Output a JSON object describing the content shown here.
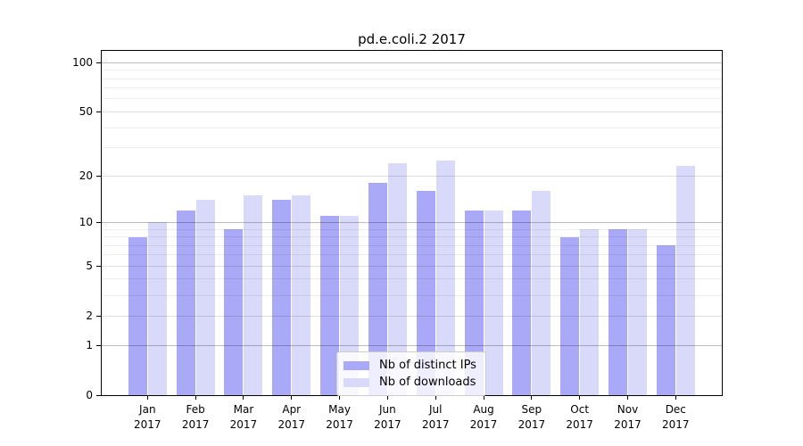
{
  "title": "pd.e.coli.2 2017",
  "chart_data": {
    "type": "bar",
    "title": "pd.e.coli.2 2017",
    "categories": [
      "Jan",
      "Feb",
      "Mar",
      "Apr",
      "May",
      "Jun",
      "Jul",
      "Aug",
      "Sep",
      "Oct",
      "Nov",
      "Dec"
    ],
    "year_label": "2017",
    "series": [
      {
        "name": "Nb of distinct IPs",
        "color": "#a9a9f7",
        "values": [
          8,
          12,
          9,
          14,
          11,
          18,
          16,
          12,
          12,
          8,
          9,
          7
        ]
      },
      {
        "name": "Nb of downloads",
        "color": "#d9d9fa",
        "values": [
          10,
          14,
          15,
          15,
          11,
          24,
          25,
          12,
          16,
          9,
          9,
          23
        ]
      }
    ],
    "xlabel": "",
    "ylabel": "",
    "y_scale": "log1p",
    "ylim": [
      0,
      118
    ],
    "y_major_ticks": [
      0,
      1,
      2,
      5,
      10,
      20,
      50,
      100
    ],
    "y_strong_gridlines": [
      1,
      10,
      100
    ],
    "y_minor_ticks": [
      3,
      4,
      6,
      7,
      8,
      9,
      30,
      40,
      60,
      70,
      80,
      90
    ],
    "grid": "both",
    "grid_on_top_of_bars": true,
    "legend_position": "lower-center-right",
    "axis_color": "#000000"
  }
}
